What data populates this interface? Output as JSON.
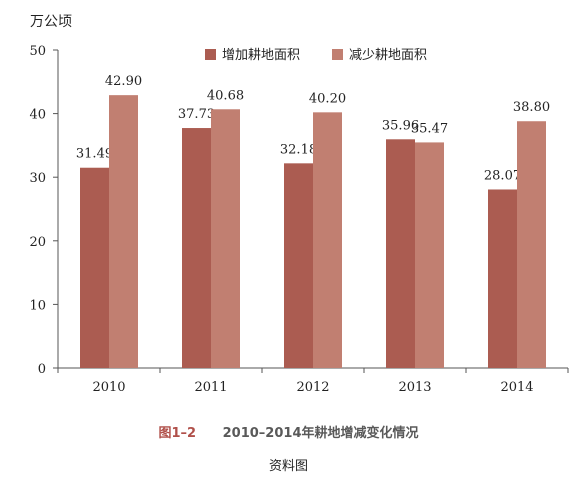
{
  "caption": {
    "figure_label": "图1–2",
    "figure_title": "2010–2014年耕地增减变化情况"
  },
  "source_text": "资料图",
  "chart_data": {
    "type": "bar",
    "title": "",
    "xlabel": "",
    "ylabel": "万公顷",
    "categories": [
      "2010",
      "2011",
      "2012",
      "2013",
      "2014"
    ],
    "series": [
      {
        "name": "增加耕地面积",
        "values": [
          31.49,
          37.73,
          32.18,
          35.96,
          28.07
        ],
        "value_labels": [
          "31.49",
          "37.73",
          "32.18",
          "35.96",
          "28.07"
        ],
        "color": "#ab5c51"
      },
      {
        "name": "减少耕地面积",
        "values": [
          42.9,
          40.68,
          40.2,
          35.47,
          38.8
        ],
        "value_labels": [
          "42.90",
          "40.68",
          "40.20",
          "35.47",
          "38.80"
        ],
        "color": "#c17f71"
      }
    ],
    "ylim": [
      0,
      50
    ],
    "yticks": [
      "0",
      "10",
      "20",
      "30",
      "40",
      "50"
    ],
    "grid": false,
    "legend_position": "top"
  }
}
